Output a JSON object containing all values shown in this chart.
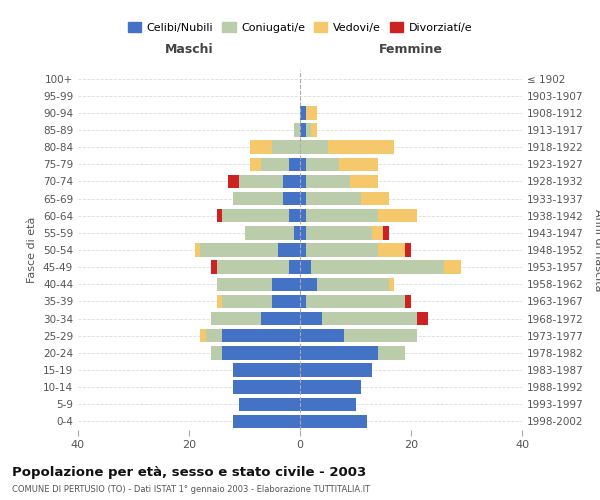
{
  "age_groups": [
    "0-4",
    "5-9",
    "10-14",
    "15-19",
    "20-24",
    "25-29",
    "30-34",
    "35-39",
    "40-44",
    "45-49",
    "50-54",
    "55-59",
    "60-64",
    "65-69",
    "70-74",
    "75-79",
    "80-84",
    "85-89",
    "90-94",
    "95-99",
    "100+"
  ],
  "birth_years": [
    "1998-2002",
    "1993-1997",
    "1988-1992",
    "1983-1987",
    "1978-1982",
    "1973-1977",
    "1968-1972",
    "1963-1967",
    "1958-1962",
    "1953-1957",
    "1948-1952",
    "1943-1947",
    "1938-1942",
    "1933-1937",
    "1928-1932",
    "1923-1927",
    "1918-1922",
    "1913-1917",
    "1908-1912",
    "1903-1907",
    "≤ 1902"
  ],
  "males": {
    "celibe": [
      12,
      11,
      12,
      12,
      14,
      14,
      7,
      5,
      5,
      2,
      4,
      1,
      2,
      3,
      3,
      2,
      0,
      0,
      0,
      0,
      0
    ],
    "coniugato": [
      0,
      0,
      0,
      0,
      2,
      3,
      9,
      9,
      10,
      13,
      14,
      9,
      12,
      9,
      8,
      5,
      5,
      1,
      0,
      0,
      0
    ],
    "vedovo": [
      0,
      0,
      0,
      0,
      0,
      1,
      0,
      1,
      0,
      0,
      1,
      0,
      0,
      0,
      0,
      2,
      4,
      0,
      0,
      0,
      0
    ],
    "divorziato": [
      0,
      0,
      0,
      0,
      0,
      0,
      0,
      0,
      0,
      1,
      0,
      0,
      1,
      0,
      2,
      0,
      0,
      0,
      0,
      0,
      0
    ]
  },
  "females": {
    "nubile": [
      12,
      10,
      11,
      13,
      14,
      8,
      4,
      1,
      3,
      2,
      1,
      1,
      1,
      1,
      1,
      1,
      0,
      1,
      1,
      0,
      0
    ],
    "coniugata": [
      0,
      0,
      0,
      0,
      5,
      13,
      17,
      18,
      13,
      24,
      13,
      12,
      13,
      10,
      8,
      6,
      5,
      1,
      0,
      0,
      0
    ],
    "vedova": [
      0,
      0,
      0,
      0,
      0,
      0,
      0,
      0,
      1,
      3,
      5,
      2,
      7,
      5,
      5,
      7,
      12,
      1,
      2,
      0,
      0
    ],
    "divorziata": [
      0,
      0,
      0,
      0,
      0,
      0,
      2,
      1,
      0,
      0,
      1,
      1,
      0,
      0,
      0,
      0,
      0,
      0,
      0,
      0,
      0
    ]
  },
  "colors": {
    "celibe_nubile": "#4472C4",
    "coniugato_a": "#BBCCAA",
    "vedovo_a": "#F5C96B",
    "divorziato_a": "#CC2222"
  },
  "xlim": 40,
  "title": "Popolazione per età, sesso e stato civile - 2003",
  "subtitle": "COMUNE DI PERTUSIO (TO) - Dati ISTAT 1° gennaio 2003 - Elaborazione TUTTITALIA.IT",
  "ylabel_left": "Fasce di età",
  "ylabel_right": "Anni di nascita",
  "xlabel_males": "Maschi",
  "xlabel_females": "Femmine"
}
